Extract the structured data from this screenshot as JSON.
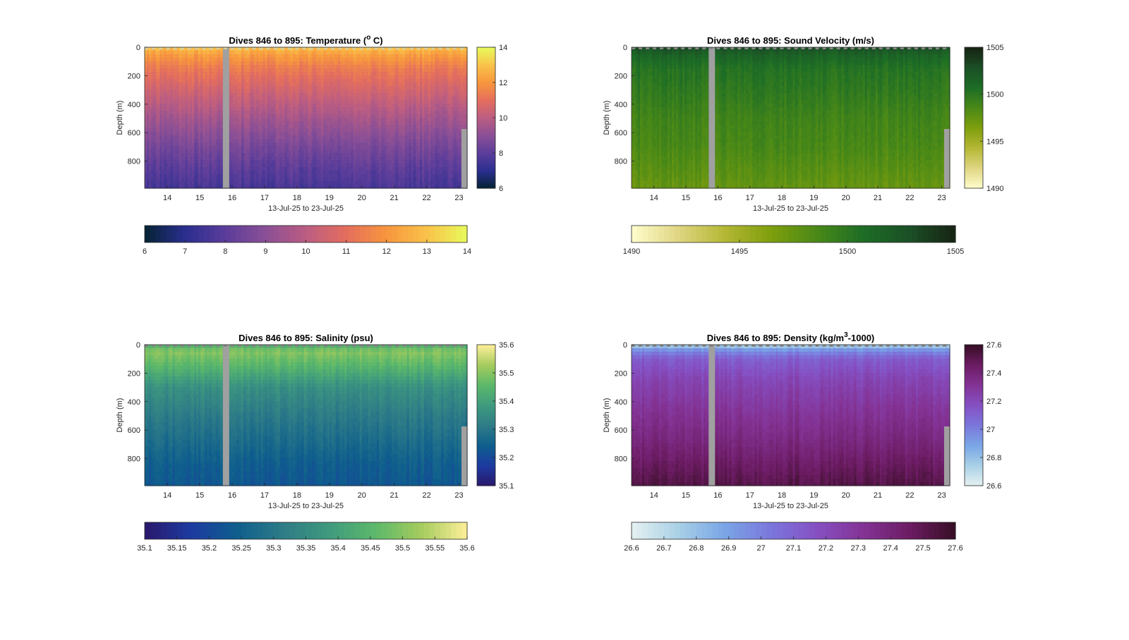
{
  "figure": {
    "background": "#ffffff"
  },
  "chart_data": [
    {
      "type": "heatmap",
      "title": "Dives 846 to 895: Temperature (°C)",
      "title_parts": [
        "Dives 846 to 895: Temperature (",
        "o",
        " C)"
      ],
      "xlabel": "13-Jul-25 to 23-Jul-25",
      "ylabel": "Depth (m)",
      "x_ticks": [
        "14",
        "15",
        "16",
        "17",
        "18",
        "19",
        "20",
        "21",
        "22",
        "23"
      ],
      "y_ticks": [
        "0",
        "200",
        "400",
        "600",
        "800"
      ],
      "ylim": [
        990,
        0
      ],
      "xlim": [
        13.3,
        23.25
      ],
      "colormap": "thermal",
      "clim": [
        6,
        14
      ],
      "colorbar_ticks": [
        "6",
        "8",
        "10",
        "12",
        "14"
      ],
      "hcolorbar_ticks": [
        "6",
        "7",
        "8",
        "9",
        "10",
        "11",
        "12",
        "13",
        "14"
      ],
      "data_gap_day": 15.8,
      "profile": {
        "depths": [
          0,
          50,
          150,
          300,
          500,
          700,
          850,
          990
        ],
        "values": [
          13.0,
          12.2,
          11.3,
          10.5,
          9.5,
          8.6,
          8.0,
          7.6
        ]
      }
    },
    {
      "type": "heatmap",
      "title": "Dives 846 to 895: Sound Velocity (m/s)",
      "title_parts": [
        "Dives 846 to 895: Sound Velocity (m/s)",
        "",
        ""
      ],
      "xlabel": "13-Jul-25 to 23-Jul-25",
      "ylabel": "Depth (m)",
      "x_ticks": [
        "14",
        "15",
        "16",
        "17",
        "18",
        "19",
        "20",
        "21",
        "22",
        "23"
      ],
      "y_ticks": [
        "0",
        "200",
        "400",
        "600",
        "800"
      ],
      "ylim": [
        990,
        0
      ],
      "xlim": [
        13.3,
        23.25
      ],
      "colormap": "speed",
      "clim": [
        1490,
        1505
      ],
      "colorbar_ticks": [
        "1490",
        "1495",
        "1500",
        "1505"
      ],
      "hcolorbar_ticks": [
        "1490",
        "1495",
        "1500",
        "1505"
      ],
      "data_gap_day": 15.8,
      "profile": {
        "depths": [
          0,
          50,
          150,
          300,
          500,
          700,
          850,
          990
        ],
        "values": [
          1503.0,
          1501.5,
          1500.3,
          1499.8,
          1499.0,
          1498.6,
          1498.0,
          1497.4
        ]
      }
    },
    {
      "type": "heatmap",
      "title": "Dives 846 to 895: Salinity (psu)",
      "title_parts": [
        "Dives 846 to 895: Salinity (psu)",
        "",
        ""
      ],
      "xlabel": "13-Jul-25 to 23-Jul-25",
      "ylabel": "Depth (m)",
      "x_ticks": [
        "14",
        "15",
        "16",
        "17",
        "18",
        "19",
        "20",
        "21",
        "22",
        "23"
      ],
      "y_ticks": [
        "0",
        "200",
        "400",
        "600",
        "800"
      ],
      "ylim": [
        990,
        0
      ],
      "xlim": [
        13.3,
        23.25
      ],
      "colormap": "haline",
      "clim": [
        35.1,
        35.6
      ],
      "colorbar_ticks": [
        "35.1",
        "35.2",
        "35.3",
        "35.4",
        "35.5",
        "35.6"
      ],
      "hcolorbar_ticks": [
        "35.1",
        "35.15",
        "35.2",
        "35.25",
        "35.3",
        "35.35",
        "35.4",
        "35.45",
        "35.5",
        "35.55",
        "35.6"
      ],
      "data_gap_day": 15.8,
      "profile": {
        "depths": [
          0,
          50,
          150,
          300,
          500,
          700,
          850,
          990
        ],
        "values": [
          35.43,
          35.5,
          35.45,
          35.36,
          35.31,
          35.27,
          35.24,
          35.23
        ]
      }
    },
    {
      "type": "heatmap",
      "title": "Dives 846 to 895: Density (kg/m³-1000)",
      "title_parts": [
        "Dives 846 to 895: Density (kg/m",
        "3",
        "-1000)"
      ],
      "xlabel": "13-Jul-25 to 23-Jul-25",
      "ylabel": "Depth (m)",
      "x_ticks": [
        "14",
        "15",
        "16",
        "17",
        "18",
        "19",
        "20",
        "21",
        "22",
        "23"
      ],
      "y_ticks": [
        "0",
        "200",
        "400",
        "600",
        "800"
      ],
      "ylim": [
        990,
        0
      ],
      "xlim": [
        13.3,
        23.25
      ],
      "colormap": "dense",
      "clim": [
        26.6,
        27.6
      ],
      "colorbar_ticks": [
        "26.6",
        "26.8",
        "27",
        "27.2",
        "27.4",
        "27.6"
      ],
      "hcolorbar_ticks": [
        "26.6",
        "26.7",
        "26.8",
        "26.9",
        "27",
        "27.1",
        "27.2",
        "27.3",
        "27.4",
        "27.5",
        "27.6"
      ],
      "data_gap_day": 15.8,
      "profile": {
        "depths": [
          0,
          40,
          100,
          250,
          450,
          650,
          850,
          990
        ],
        "values": [
          26.72,
          26.95,
          27.12,
          27.22,
          27.3,
          27.37,
          27.46,
          27.52
        ]
      }
    }
  ],
  "colormaps": {
    "thermal": [
      "#042333",
      "#2a2e8f",
      "#5b3d9a",
      "#8a4f96",
      "#bb5d82",
      "#e46e5e",
      "#f7963e",
      "#f9c24a",
      "#e8fa5b"
    ],
    "speed": [
      "#fffdcd",
      "#e0d683",
      "#b5b835",
      "#7f9f0d",
      "#4a8917",
      "#1d6d26",
      "#1b4f26",
      "#172313"
    ],
    "haline": [
      "#2a186c",
      "#1d3aa0",
      "#0e5e8d",
      "#2e7c87",
      "#3f9a7e",
      "#5bb86a",
      "#a5cb5d",
      "#fdef9a"
    ],
    "dense": [
      "#e6f1f1",
      "#a9d1e6",
      "#7aa6e6",
      "#7b77dc",
      "#8550c3",
      "#843395",
      "#6c1c63",
      "#360e24"
    ]
  },
  "gap_color": "#a0a0a0"
}
